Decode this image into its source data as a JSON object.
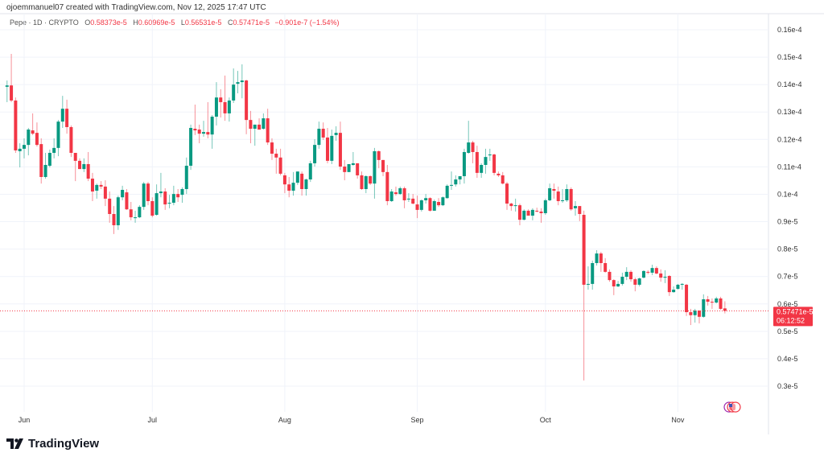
{
  "header": {
    "credit": "ojoemmanuel07 created with TradingView.com, Nov 12, 2025 17:47 UTC",
    "symbol": "Pepe · 1D · CRYPTO",
    "open_label": "O",
    "open": "0.58373e-5",
    "high_label": "H",
    "high": "0.60969e-5",
    "low_label": "L",
    "low": "0.56531e-5",
    "close_label": "C",
    "close": "0.57471e-5",
    "change": "−0.901e-7 (−1.54%)"
  },
  "price_tag": {
    "price": "0.57471e-5",
    "countdown": "06:12:52"
  },
  "logo": {
    "text": "TradingView"
  },
  "colors": {
    "up": "#089981",
    "down": "#f23645",
    "grid": "#f0f3fa"
  },
  "chart_data": {
    "type": "candlestick",
    "interval": "1D",
    "first_date": "2025-05-28",
    "price_unit": "e-5",
    "ylim": [
      0.3,
      1.6
    ],
    "grid": true,
    "y_ticks": [
      {
        "value": 1.6,
        "label": "0.16e-4"
      },
      {
        "value": 1.5,
        "label": "0.15e-4"
      },
      {
        "value": 1.4,
        "label": "0.14e-4"
      },
      {
        "value": 1.3,
        "label": "0.13e-4"
      },
      {
        "value": 1.2,
        "label": "0.12e-4"
      },
      {
        "value": 1.1,
        "label": "0.11e-4"
      },
      {
        "value": 1.0,
        "label": "0.1e-4"
      },
      {
        "value": 0.9,
        "label": "0.9e-5"
      },
      {
        "value": 0.8,
        "label": "0.8e-5"
      },
      {
        "value": 0.7,
        "label": "0.7e-5"
      },
      {
        "value": 0.6,
        "label": "0.6e-5"
      },
      {
        "value": 0.5,
        "label": "0.5e-5"
      },
      {
        "value": 0.4,
        "label": "0.4e-5"
      },
      {
        "value": 0.3,
        "label": "0.3e-5"
      }
    ],
    "x_ticks": [
      {
        "date": "2025-06-01",
        "label": "Jun"
      },
      {
        "date": "2025-07-01",
        "label": "Jul"
      },
      {
        "date": "2025-08-01",
        "label": "Aug"
      },
      {
        "date": "2025-09-01",
        "label": "Sep"
      },
      {
        "date": "2025-10-01",
        "label": "Oct"
      },
      {
        "date": "2025-11-01",
        "label": "Nov"
      }
    ],
    "last_price": 0.57471,
    "ohlc": [
      [
        1.392,
        1.415,
        1.336,
        1.397
      ],
      [
        1.397,
        1.512,
        1.336,
        1.342
      ],
      [
        1.342,
        1.353,
        1.151,
        1.16
      ],
      [
        1.157,
        1.186,
        1.098,
        1.166
      ],
      [
        1.166,
        1.204,
        1.131,
        1.18
      ],
      [
        1.18,
        1.242,
        1.142,
        1.236
      ],
      [
        1.233,
        1.295,
        1.216,
        1.221
      ],
      [
        1.224,
        1.262,
        1.174,
        1.18
      ],
      [
        1.183,
        1.204,
        1.039,
        1.063
      ],
      [
        1.063,
        1.151,
        1.057,
        1.107
      ],
      [
        1.104,
        1.163,
        1.098,
        1.151
      ],
      [
        1.151,
        1.204,
        1.131,
        1.169
      ],
      [
        1.169,
        1.271,
        1.139,
        1.265
      ],
      [
        1.265,
        1.359,
        1.242,
        1.312
      ],
      [
        1.312,
        1.345,
        1.221,
        1.245
      ],
      [
        1.245,
        1.251,
        1.136,
        1.151
      ],
      [
        1.151,
        1.151,
        1.048,
        1.122
      ],
      [
        1.122,
        1.131,
        1.092,
        1.092
      ],
      [
        1.092,
        1.131,
        1.081,
        1.11
      ],
      [
        1.11,
        1.154,
        1.048,
        1.057
      ],
      [
        1.057,
        1.078,
        0.975,
        1.01
      ],
      [
        1.013,
        1.039,
        0.984,
        1.034
      ],
      [
        1.034,
        1.048,
        1.019,
        1.028
      ],
      [
        1.028,
        1.051,
        0.957,
        0.984
      ],
      [
        0.984,
        1.01,
        0.896,
        0.928
      ],
      [
        0.928,
        0.957,
        0.855,
        0.887
      ],
      [
        0.887,
        0.995,
        0.87,
        0.989
      ],
      [
        0.989,
        1.031,
        0.978,
        1.016
      ],
      [
        1.007,
        1.019,
        0.943,
        0.945
      ],
      [
        0.945,
        0.972,
        0.905,
        0.916
      ],
      [
        0.913,
        0.94,
        0.896,
        0.916
      ],
      [
        0.916,
        0.96,
        0.913,
        0.954
      ],
      [
        0.954,
        1.045,
        0.943,
        1.039
      ],
      [
        1.039,
        1.045,
        0.96,
        0.975
      ],
      [
        0.975,
        0.989,
        0.916,
        0.922
      ],
      [
        0.925,
        1.036,
        0.922,
        1.004
      ],
      [
        1.004,
        1.078,
        0.989,
        1.01
      ],
      [
        1.01,
        1.022,
        0.943,
        0.963
      ],
      [
        0.966,
        0.998,
        0.949,
        0.969
      ],
      [
        0.969,
        1.031,
        0.96,
        1.001
      ],
      [
        1.001,
        1.019,
        0.972,
        0.989
      ],
      [
        0.998,
        1.025,
        0.969,
        1.019
      ],
      [
        1.019,
        1.134,
        1.001,
        1.104
      ],
      [
        1.104,
        1.254,
        1.089,
        1.242
      ],
      [
        1.239,
        1.327,
        1.216,
        1.233
      ],
      [
        1.236,
        1.254,
        1.186,
        1.221
      ],
      [
        1.221,
        1.268,
        1.21,
        1.227
      ],
      [
        1.227,
        1.336,
        1.204,
        1.218
      ],
      [
        1.218,
        1.289,
        1.166,
        1.283
      ],
      [
        1.283,
        1.409,
        1.251,
        1.353
      ],
      [
        1.353,
        1.383,
        1.28,
        1.336
      ],
      [
        1.336,
        1.433,
        1.268,
        1.295
      ],
      [
        1.295,
        1.353,
        1.265,
        1.342
      ],
      [
        1.342,
        1.459,
        1.333,
        1.4
      ],
      [
        1.403,
        1.45,
        1.368,
        1.409
      ],
      [
        1.409,
        1.474,
        1.35,
        1.415
      ],
      [
        1.415,
        1.418,
        1.219,
        1.271
      ],
      [
        1.271,
        1.304,
        1.186,
        1.239
      ],
      [
        1.239,
        1.254,
        1.177,
        1.254
      ],
      [
        1.254,
        1.277,
        1.236,
        1.236
      ],
      [
        1.239,
        1.295,
        1.236,
        1.277
      ],
      [
        1.277,
        1.312,
        1.18,
        1.189
      ],
      [
        1.189,
        1.204,
        1.125,
        1.148
      ],
      [
        1.148,
        1.166,
        1.075,
        1.134
      ],
      [
        1.134,
        1.166,
        1.069,
        1.075
      ],
      [
        1.069,
        1.078,
        1.004,
        1.036
      ],
      [
        1.036,
        1.063,
        0.989,
        1.013
      ],
      [
        1.013,
        1.081,
        0.995,
        1.042
      ],
      [
        1.042,
        1.083,
        1.034,
        1.083
      ],
      [
        1.075,
        1.083,
        0.995,
        1.019
      ],
      [
        1.019,
        1.057,
        0.995,
        1.054
      ],
      [
        1.054,
        1.122,
        1.045,
        1.113
      ],
      [
        1.113,
        1.201,
        1.101,
        1.18
      ],
      [
        1.18,
        1.265,
        1.166,
        1.239
      ],
      [
        1.239,
        1.262,
        1.198,
        1.207
      ],
      [
        1.207,
        1.242,
        1.113,
        1.122
      ],
      [
        1.122,
        1.236,
        1.11,
        1.213
      ],
      [
        1.216,
        1.248,
        1.195,
        1.224
      ],
      [
        1.224,
        1.265,
        1.089,
        1.101
      ],
      [
        1.101,
        1.125,
        1.051,
        1.081
      ],
      [
        1.081,
        1.11,
        1.081,
        1.11
      ],
      [
        1.107,
        1.154,
        1.104,
        1.113
      ],
      [
        1.113,
        1.113,
        1.057,
        1.069
      ],
      [
        1.069,
        1.083,
        1.016,
        1.019
      ],
      [
        1.019,
        1.069,
        1.004,
        1.066
      ],
      [
        1.066,
        1.069,
        1.034,
        1.039
      ],
      [
        1.039,
        1.169,
        0.984,
        1.157
      ],
      [
        1.157,
        1.16,
        1.095,
        1.125
      ],
      [
        1.125,
        1.125,
        1.066,
        1.081
      ],
      [
        1.081,
        1.107,
        0.96,
        0.975
      ],
      [
        0.975,
        1.019,
        0.972,
        1.01
      ],
      [
        1.007,
        1.028,
        0.995,
        1.001
      ],
      [
        1.001,
        1.028,
        0.998,
        1.022
      ],
      [
        1.022,
        1.028,
        0.949,
        0.978
      ],
      [
        0.981,
        1.004,
        0.972,
        0.984
      ],
      [
        0.984,
        1.001,
        0.963,
        0.966
      ],
      [
        0.963,
        0.995,
        0.913,
        0.943
      ],
      [
        0.943,
        0.981,
        0.937,
        0.978
      ],
      [
        0.978,
        1.001,
        0.966,
        0.986
      ],
      [
        0.986,
        0.989,
        0.937,
        0.94
      ],
      [
        0.94,
        0.981,
        0.94,
        0.975
      ],
      [
        0.972,
        0.986,
        0.954,
        0.96
      ],
      [
        0.96,
        0.992,
        0.957,
        0.989
      ],
      [
        0.986,
        1.036,
        0.984,
        1.031
      ],
      [
        1.031,
        1.083,
        1.016,
        1.034
      ],
      [
        1.036,
        1.069,
        1.028,
        1.054
      ],
      [
        1.054,
        1.066,
        1.036,
        1.066
      ],
      [
        1.066,
        1.166,
        1.039,
        1.154
      ],
      [
        1.151,
        1.268,
        1.148,
        1.189
      ],
      [
        1.189,
        1.195,
        1.113,
        1.154
      ],
      [
        1.154,
        1.177,
        1.06,
        1.078
      ],
      [
        1.078,
        1.113,
        1.06,
        1.107
      ],
      [
        1.107,
        1.166,
        1.075,
        1.136
      ],
      [
        1.142,
        1.166,
        1.122,
        1.145
      ],
      [
        1.145,
        1.148,
        1.069,
        1.078
      ],
      [
        1.075,
        1.083,
        1.063,
        1.069
      ],
      [
        1.069,
        1.081,
        1.036,
        1.039
      ],
      [
        1.039,
        1.045,
        0.943,
        0.966
      ],
      [
        0.966,
        0.969,
        0.94,
        0.957
      ],
      [
        0.957,
        0.984,
        0.937,
        0.96
      ],
      [
        0.96,
        0.966,
        0.887,
        0.907
      ],
      [
        0.907,
        0.945,
        0.905,
        0.94
      ],
      [
        0.94,
        0.945,
        0.922,
        0.922
      ],
      [
        0.922,
        0.949,
        0.905,
        0.943
      ],
      [
        0.94,
        0.951,
        0.934,
        0.937
      ],
      [
        0.937,
        0.949,
        0.896,
        0.931
      ],
      [
        0.931,
        0.984,
        0.925,
        0.978
      ],
      [
        0.978,
        1.039,
        0.975,
        1.022
      ],
      [
        1.019,
        1.039,
        0.984,
        1.013
      ],
      [
        1.01,
        1.028,
        0.96,
        0.975
      ],
      [
        0.975,
        1.019,
        0.969,
        0.978
      ],
      [
        0.978,
        1.036,
        0.972,
        1.019
      ],
      [
        1.019,
        1.025,
        0.94,
        0.945
      ],
      [
        0.949,
        0.975,
        0.922,
        0.957
      ],
      [
        0.957,
        0.957,
        0.902,
        0.928
      ],
      [
        0.925,
        0.94,
        0.321,
        0.67
      ],
      [
        0.67,
        0.737,
        0.652,
        0.673
      ],
      [
        0.673,
        0.758,
        0.652,
        0.749
      ],
      [
        0.749,
        0.796,
        0.74,
        0.784
      ],
      [
        0.784,
        0.79,
        0.717,
        0.749
      ],
      [
        0.749,
        0.767,
        0.714,
        0.717
      ],
      [
        0.717,
        0.726,
        0.681,
        0.687
      ],
      [
        0.687,
        0.69,
        0.632,
        0.664
      ],
      [
        0.664,
        0.684,
        0.661,
        0.673
      ],
      [
        0.673,
        0.714,
        0.667,
        0.699
      ],
      [
        0.699,
        0.734,
        0.687,
        0.717
      ],
      [
        0.717,
        0.723,
        0.681,
        0.69
      ],
      [
        0.69,
        0.696,
        0.646,
        0.67
      ],
      [
        0.67,
        0.696,
        0.664,
        0.693
      ],
      [
        0.696,
        0.723,
        0.693,
        0.72
      ],
      [
        0.717,
        0.723,
        0.708,
        0.714
      ],
      [
        0.714,
        0.743,
        0.705,
        0.731
      ],
      [
        0.731,
        0.737,
        0.708,
        0.711
      ],
      [
        0.711,
        0.726,
        0.681,
        0.696
      ],
      [
        0.696,
        0.723,
        0.676,
        0.699
      ],
      [
        0.702,
        0.705,
        0.629,
        0.643
      ],
      [
        0.643,
        0.664,
        0.641,
        0.652
      ],
      [
        0.655,
        0.673,
        0.652,
        0.67
      ],
      [
        0.67,
        0.676,
        0.652,
        0.673
      ],
      [
        0.67,
        0.673,
        0.556,
        0.57
      ],
      [
        0.57,
        0.582,
        0.523,
        0.559
      ],
      [
        0.559,
        0.582,
        0.532,
        0.576
      ],
      [
        0.576,
        0.576,
        0.529,
        0.553
      ],
      [
        0.553,
        0.635,
        0.55,
        0.617
      ],
      [
        0.617,
        0.629,
        0.594,
        0.608
      ],
      [
        0.608,
        0.62,
        0.582,
        0.605
      ],
      [
        0.605,
        0.626,
        0.602,
        0.62
      ],
      [
        0.62,
        0.626,
        0.579,
        0.582
      ],
      [
        0.5837,
        0.6097,
        0.5653,
        0.5747
      ]
    ]
  }
}
